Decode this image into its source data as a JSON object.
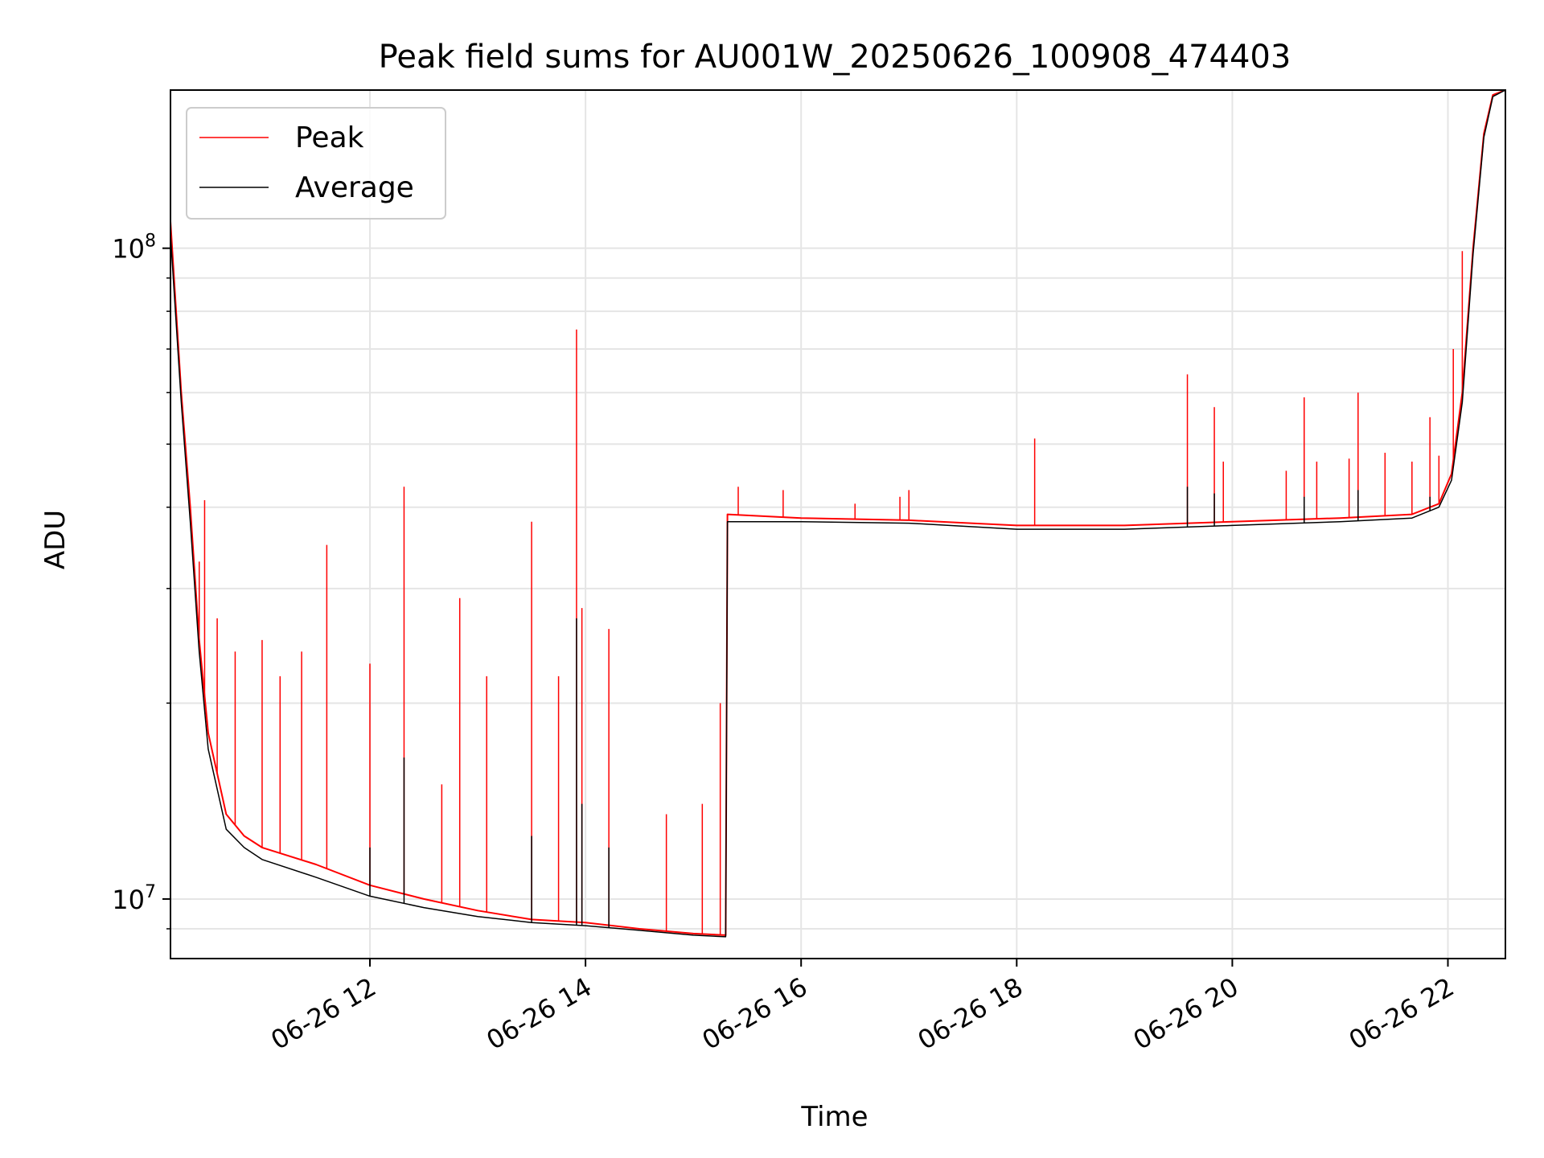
{
  "chart_data": {
    "type": "line",
    "title": "Peak field sums for AU001W_20250626_100908_474403",
    "xlabel": "Time",
    "ylabel": "ADU",
    "x_axis": {
      "kind": "time",
      "range": [
        "2025-06-26 10:09",
        "2025-06-26 22:32"
      ],
      "ticks": [
        {
          "t": "2025-06-26 12:00",
          "label": "06-26 12"
        },
        {
          "t": "2025-06-26 14:00",
          "label": "06-26 14"
        },
        {
          "t": "2025-06-26 16:00",
          "label": "06-26 16"
        },
        {
          "t": "2025-06-26 18:00",
          "label": "06-26 18"
        },
        {
          "t": "2025-06-26 20:00",
          "label": "06-26 20"
        },
        {
          "t": "2025-06-26 22:00",
          "label": "06-26 22"
        }
      ]
    },
    "y_axis": {
      "scale": "log",
      "range": [
        8100000,
        175000000
      ],
      "ticks": [
        {
          "value": 10000000,
          "base": "10",
          "exp": "7"
        },
        {
          "value": 100000000,
          "base": "10",
          "exp": "8"
        }
      ]
    },
    "grid": true,
    "legend": {
      "placement": "top-left"
    },
    "series": [
      {
        "name": "Peak",
        "color": "#ff0000",
        "baseline": [
          [
            "2025-06-26 10:09",
            110000000
          ],
          [
            "2025-06-26 10:15",
            60000000
          ],
          [
            "2025-06-26 10:20",
            40000000
          ],
          [
            "2025-06-26 10:25",
            25000000
          ],
          [
            "2025-06-26 10:30",
            18000000
          ],
          [
            "2025-06-26 10:40",
            13500000
          ],
          [
            "2025-06-26 10:50",
            12500000
          ],
          [
            "2025-06-26 11:00",
            12000000
          ],
          [
            "2025-06-26 11:30",
            11300000
          ],
          [
            "2025-06-26 12:00",
            10500000
          ],
          [
            "2025-06-26 12:30",
            10000000
          ],
          [
            "2025-06-26 13:00",
            9600000
          ],
          [
            "2025-06-26 13:30",
            9300000
          ],
          [
            "2025-06-26 14:00",
            9200000
          ],
          [
            "2025-06-26 14:30",
            9000000
          ],
          [
            "2025-06-26 15:00",
            8850000
          ],
          [
            "2025-06-26 15:18",
            8800000
          ],
          [
            "2025-06-26 15:19",
            39000000
          ],
          [
            "2025-06-26 16:00",
            38500000
          ],
          [
            "2025-06-26 17:00",
            38200000
          ],
          [
            "2025-06-26 18:00",
            37500000
          ],
          [
            "2025-06-26 19:00",
            37500000
          ],
          [
            "2025-06-26 20:00",
            38000000
          ],
          [
            "2025-06-26 21:00",
            38500000
          ],
          [
            "2025-06-26 21:40",
            39000000
          ],
          [
            "2025-06-26 21:55",
            40500000
          ],
          [
            "2025-06-26 22:02",
            45000000
          ],
          [
            "2025-06-26 22:08",
            60000000
          ],
          [
            "2025-06-26 22:14",
            100000000
          ],
          [
            "2025-06-26 22:20",
            150000000
          ],
          [
            "2025-06-26 22:25",
            172000000
          ],
          [
            "2025-06-26 22:32",
            175000000
          ]
        ],
        "spikes": [
          [
            "2025-06-26 10:25",
            33000000
          ],
          [
            "2025-06-26 10:28",
            41000000
          ],
          [
            "2025-06-26 10:35",
            27000000
          ],
          [
            "2025-06-26 10:45",
            24000000
          ],
          [
            "2025-06-26 11:00",
            25000000
          ],
          [
            "2025-06-26 11:10",
            22000000
          ],
          [
            "2025-06-26 11:22",
            24000000
          ],
          [
            "2025-06-26 11:36",
            35000000
          ],
          [
            "2025-06-26 12:00",
            23000000
          ],
          [
            "2025-06-26 12:19",
            43000000
          ],
          [
            "2025-06-26 12:40",
            15000000
          ],
          [
            "2025-06-26 12:50",
            29000000
          ],
          [
            "2025-06-26 13:05",
            22000000
          ],
          [
            "2025-06-26 13:30",
            38000000
          ],
          [
            "2025-06-26 13:45",
            22000000
          ],
          [
            "2025-06-26 13:55",
            75000000
          ],
          [
            "2025-06-26 13:58",
            28000000
          ],
          [
            "2025-06-26 14:13",
            26000000
          ],
          [
            "2025-06-26 14:45",
            13500000
          ],
          [
            "2025-06-26 15:05",
            14000000
          ],
          [
            "2025-06-26 15:15",
            20000000
          ],
          [
            "2025-06-26 15:25",
            43000000
          ],
          [
            "2025-06-26 15:50",
            42500000
          ],
          [
            "2025-06-26 16:30",
            40500000
          ],
          [
            "2025-06-26 16:55",
            41500000
          ],
          [
            "2025-06-26 17:00",
            42500000
          ],
          [
            "2025-06-26 18:10",
            51000000
          ],
          [
            "2025-06-26 19:35",
            64000000
          ],
          [
            "2025-06-26 19:50",
            57000000
          ],
          [
            "2025-06-26 19:55",
            47000000
          ],
          [
            "2025-06-26 20:30",
            45500000
          ],
          [
            "2025-06-26 20:40",
            59000000
          ],
          [
            "2025-06-26 20:47",
            47000000
          ],
          [
            "2025-06-26 21:05",
            47500000
          ],
          [
            "2025-06-26 21:10",
            60000000
          ],
          [
            "2025-06-26 21:25",
            48500000
          ],
          [
            "2025-06-26 21:40",
            47000000
          ],
          [
            "2025-06-26 21:50",
            55000000
          ],
          [
            "2025-06-26 21:55",
            48000000
          ],
          [
            "2025-06-26 22:03",
            70000000
          ],
          [
            "2025-06-26 22:08",
            99000000
          ]
        ]
      },
      {
        "name": "Average",
        "color": "#000000",
        "baseline": [
          [
            "2025-06-26 10:09",
            105000000
          ],
          [
            "2025-06-26 10:15",
            58000000
          ],
          [
            "2025-06-26 10:20",
            38000000
          ],
          [
            "2025-06-26 10:25",
            24000000
          ],
          [
            "2025-06-26 10:30",
            17000000
          ],
          [
            "2025-06-26 10:40",
            12800000
          ],
          [
            "2025-06-26 10:50",
            12000000
          ],
          [
            "2025-06-26 11:00",
            11500000
          ],
          [
            "2025-06-26 11:30",
            10800000
          ],
          [
            "2025-06-26 12:00",
            10100000
          ],
          [
            "2025-06-26 12:30",
            9700000
          ],
          [
            "2025-06-26 13:00",
            9400000
          ],
          [
            "2025-06-26 13:30",
            9200000
          ],
          [
            "2025-06-26 14:00",
            9100000
          ],
          [
            "2025-06-26 14:30",
            8950000
          ],
          [
            "2025-06-26 15:00",
            8800000
          ],
          [
            "2025-06-26 15:18",
            8750000
          ],
          [
            "2025-06-26 15:19",
            38000000
          ],
          [
            "2025-06-26 16:00",
            38000000
          ],
          [
            "2025-06-26 17:00",
            37800000
          ],
          [
            "2025-06-26 18:00",
            37000000
          ],
          [
            "2025-06-26 19:00",
            37000000
          ],
          [
            "2025-06-26 20:00",
            37500000
          ],
          [
            "2025-06-26 21:00",
            38000000
          ],
          [
            "2025-06-26 21:40",
            38500000
          ],
          [
            "2025-06-26 21:55",
            40000000
          ],
          [
            "2025-06-26 22:02",
            44000000
          ],
          [
            "2025-06-26 22:08",
            58000000
          ],
          [
            "2025-06-26 22:14",
            98000000
          ],
          [
            "2025-06-26 22:20",
            148000000
          ],
          [
            "2025-06-26 22:25",
            171000000
          ],
          [
            "2025-06-26 22:32",
            175000000
          ]
        ],
        "spikes": [
          [
            "2025-06-26 12:00",
            12000000
          ],
          [
            "2025-06-26 12:19",
            16500000
          ],
          [
            "2025-06-26 13:30",
            12500000
          ],
          [
            "2025-06-26 13:55",
            27000000
          ],
          [
            "2025-06-26 13:58",
            14000000
          ],
          [
            "2025-06-26 14:13",
            12000000
          ],
          [
            "2025-06-26 19:35",
            43000000
          ],
          [
            "2025-06-26 19:50",
            42000000
          ],
          [
            "2025-06-26 20:40",
            41500000
          ],
          [
            "2025-06-26 21:10",
            42500000
          ],
          [
            "2025-06-26 21:50",
            41500000
          ]
        ]
      }
    ]
  }
}
